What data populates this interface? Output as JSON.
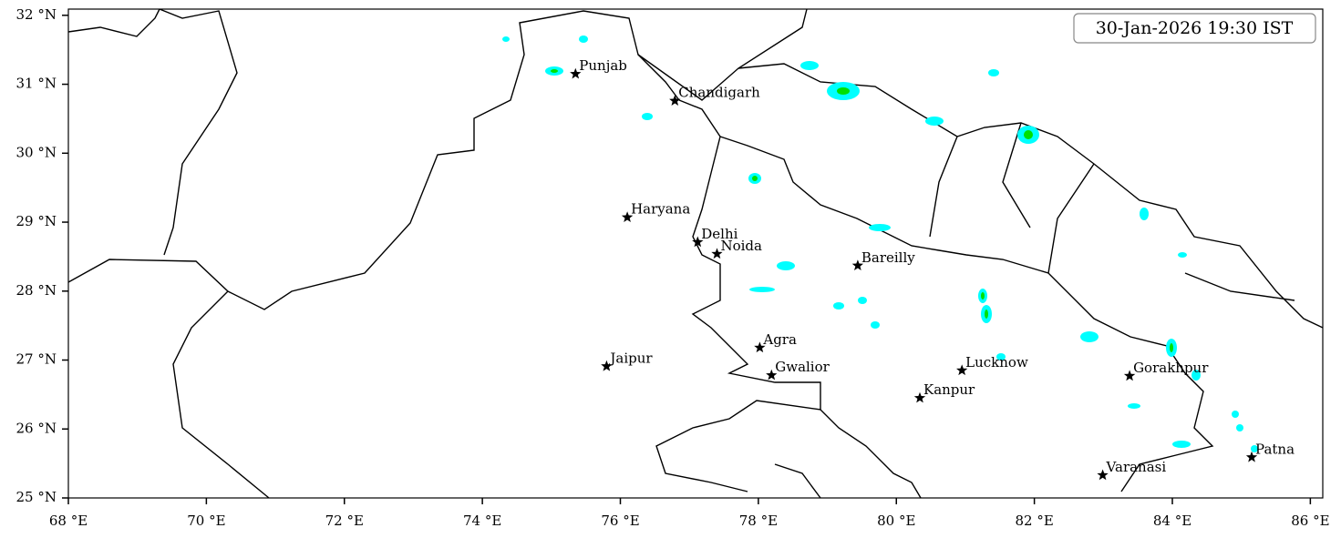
{
  "chart_data": {
    "type": "map",
    "title": "30-Jan-2026 19:30 IST",
    "xlim": [
      68,
      86.18
    ],
    "ylim": [
      25,
      32.09
    ],
    "xticks": [
      {
        "value": 68,
        "label": "68 °E"
      },
      {
        "value": 70,
        "label": "70 °E"
      },
      {
        "value": 72,
        "label": "72 °E"
      },
      {
        "value": 74,
        "label": "74 °E"
      },
      {
        "value": 76,
        "label": "76 °E"
      },
      {
        "value": 78,
        "label": "78 °E"
      },
      {
        "value": 80,
        "label": "80 °E"
      },
      {
        "value": 82,
        "label": "82 °E"
      },
      {
        "value": 84,
        "label": "84 °E"
      },
      {
        "value": 86,
        "label": "86 °E"
      }
    ],
    "yticks": [
      {
        "value": 25,
        "label": "25 °N"
      },
      {
        "value": 26,
        "label": "26 °N"
      },
      {
        "value": 27,
        "label": "27 °N"
      },
      {
        "value": 28,
        "label": "28 °N"
      },
      {
        "value": 29,
        "label": "29 °N"
      },
      {
        "value": 30,
        "label": "30 °N"
      },
      {
        "value": 31,
        "label": "31 °N"
      },
      {
        "value": 32,
        "label": "32 °N"
      }
    ],
    "cities": [
      {
        "name": "Punjab",
        "lon": 75.35,
        "lat": 31.15
      },
      {
        "name": "Chandigarh",
        "lon": 76.79,
        "lat": 30.76
      },
      {
        "name": "Haryana",
        "lon": 76.1,
        "lat": 29.07
      },
      {
        "name": "Delhi",
        "lon": 77.12,
        "lat": 28.71
      },
      {
        "name": "Noida",
        "lon": 77.4,
        "lat": 28.54
      },
      {
        "name": "Bareilly",
        "lon": 79.44,
        "lat": 28.37
      },
      {
        "name": "Jaipur",
        "lon": 75.8,
        "lat": 26.91
      },
      {
        "name": "Agra",
        "lon": 78.02,
        "lat": 27.18
      },
      {
        "name": "Gwalior",
        "lon": 78.19,
        "lat": 26.78
      },
      {
        "name": "Lucknow",
        "lon": 80.95,
        "lat": 26.85
      },
      {
        "name": "Kanpur",
        "lon": 80.34,
        "lat": 26.45
      },
      {
        "name": "Gorakhpur",
        "lon": 83.38,
        "lat": 26.77
      },
      {
        "name": "Varanasi",
        "lon": 82.99,
        "lat": 25.33
      },
      {
        "name": "Patna",
        "lon": 85.15,
        "lat": 25.59
      }
    ]
  }
}
